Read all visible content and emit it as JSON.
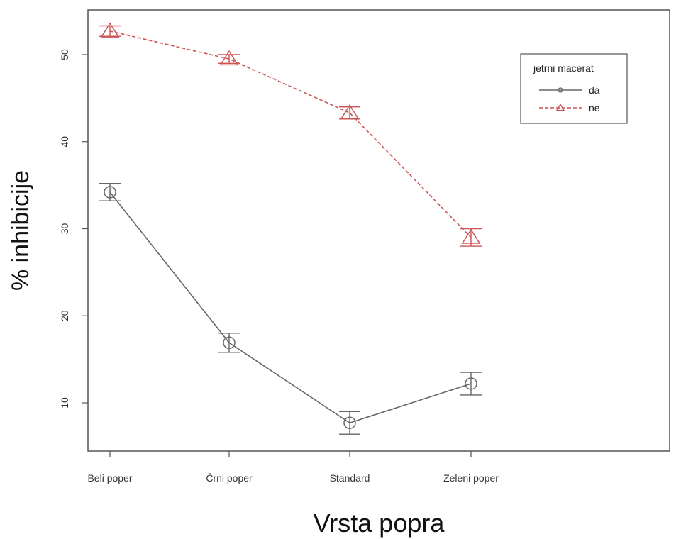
{
  "chart_data": {
    "type": "line",
    "xlabel": "Vrsta popra",
    "ylabel": "% inhibicije",
    "categories": [
      "Beli poper",
      "Črni poper",
      "Standard",
      "Zeleni poper"
    ],
    "ylim": [
      5,
      55
    ],
    "yticks": [
      10,
      20,
      30,
      40,
      50
    ],
    "grid": false,
    "legend": {
      "title": "jetrni macerat",
      "placement": "top-right"
    },
    "series": [
      {
        "name": "da",
        "values": [
          34.2,
          16.9,
          7.7,
          12.2
        ],
        "error": [
          1.0,
          1.1,
          1.3,
          1.3
        ],
        "color": "#666666",
        "marker": "circle",
        "line": "solid"
      },
      {
        "name": "ne",
        "values": [
          52.7,
          49.5,
          43.3,
          29.0
        ],
        "error": [
          0.6,
          0.5,
          0.7,
          1.0
        ],
        "color": "#cc5555",
        "marker": "triangle",
        "line": "dashed"
      }
    ]
  }
}
